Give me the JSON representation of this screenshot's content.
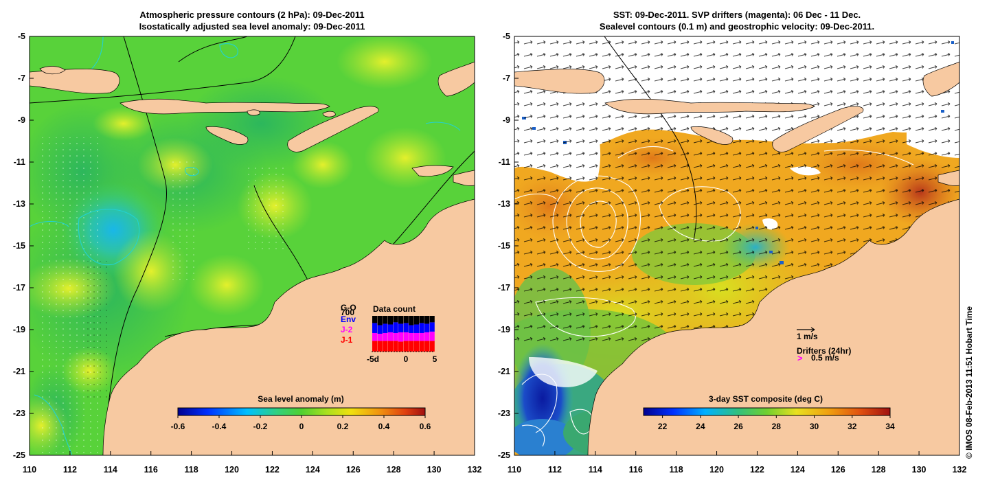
{
  "left_panel": {
    "title_line1": "Atmospheric pressure contours (2 hPa): 09-Dec-2011",
    "title_line2": "Isostatically adjusted sea level anomaly: 09-Dec-2011",
    "colorbar": {
      "title": "Sea level anomaly (m)",
      "min": -0.6,
      "max": 0.6,
      "ticks": [
        "-0.6",
        "-0.4",
        "-0.2",
        "0",
        "0.2",
        "0.4",
        "0.6"
      ]
    },
    "inset": {
      "title": "Data count",
      "legend": [
        "G-O",
        "700",
        "Env",
        "J-2",
        "J-1"
      ],
      "legend_colors": [
        "#000000",
        "#000000",
        "#0000ff",
        "#ff00ff",
        "#ff0000"
      ],
      "xticks": [
        "-5d",
        "0",
        "5"
      ],
      "bars": [
        {
          "black": 0.2,
          "blue": 0.28,
          "magenta": 0.22,
          "red": 0.3
        },
        {
          "black": 0.26,
          "blue": 0.24,
          "magenta": 0.2,
          "red": 0.3
        },
        {
          "black": 0.22,
          "blue": 0.26,
          "magenta": 0.22,
          "red": 0.3
        },
        {
          "black": 0.24,
          "blue": 0.22,
          "magenta": 0.24,
          "red": 0.3
        },
        {
          "black": 0.18,
          "blue": 0.3,
          "magenta": 0.22,
          "red": 0.3
        },
        {
          "black": 0.22,
          "blue": 0.24,
          "magenta": 0.26,
          "red": 0.28
        },
        {
          "black": 0.2,
          "blue": 0.26,
          "magenta": 0.24,
          "red": 0.3
        },
        {
          "black": 0.26,
          "blue": 0.22,
          "magenta": 0.22,
          "red": 0.3
        },
        {
          "black": 0.24,
          "blue": 0.24,
          "magenta": 0.22,
          "red": 0.3
        },
        {
          "black": 0.2,
          "blue": 0.28,
          "magenta": 0.22,
          "red": 0.3
        },
        {
          "black": 0.22,
          "blue": 0.24,
          "magenta": 0.24,
          "red": 0.3
        },
        {
          "black": 0.18,
          "blue": 0.26,
          "magenta": 0.26,
          "red": 0.3
        }
      ]
    }
  },
  "right_panel": {
    "title_line1": "SST: 09-Dec-2011. SVP drifters (magenta): 06 Dec - 11 Dec.",
    "title_line2": "Sealevel contours (0.1 m) and geostrophic velocity: 09-Dec-2011.",
    "colorbar": {
      "title": "3-day SST composite (deg C)",
      "min": 21,
      "max": 34,
      "ticks": [
        "22",
        "24",
        "26",
        "28",
        "30",
        "32",
        "34"
      ]
    },
    "velocity_scale": "1 m/s",
    "drifters_label": "Drifters (24hr)",
    "drifters_arrow": ">",
    "drifters_scale": "0.5 m/s"
  },
  "axes": {
    "lon_ticks": [
      "110",
      "112",
      "114",
      "116",
      "118",
      "120",
      "122",
      "124",
      "126",
      "128",
      "130",
      "132"
    ],
    "lat_ticks": [
      "-5",
      "-7",
      "-9",
      "-11",
      "-13",
      "-15",
      "-17",
      "-19",
      "-21",
      "-23",
      "-25"
    ],
    "lon_range": [
      110,
      132
    ],
    "lat_range": [
      -25,
      -5
    ]
  },
  "credit": "© IMOS 08-Feb-2013 11:51 Hobart Time",
  "colors": {
    "land": "#f7c9a1",
    "sla_background": "#58d23a",
    "sst_background": "#f0a820"
  }
}
